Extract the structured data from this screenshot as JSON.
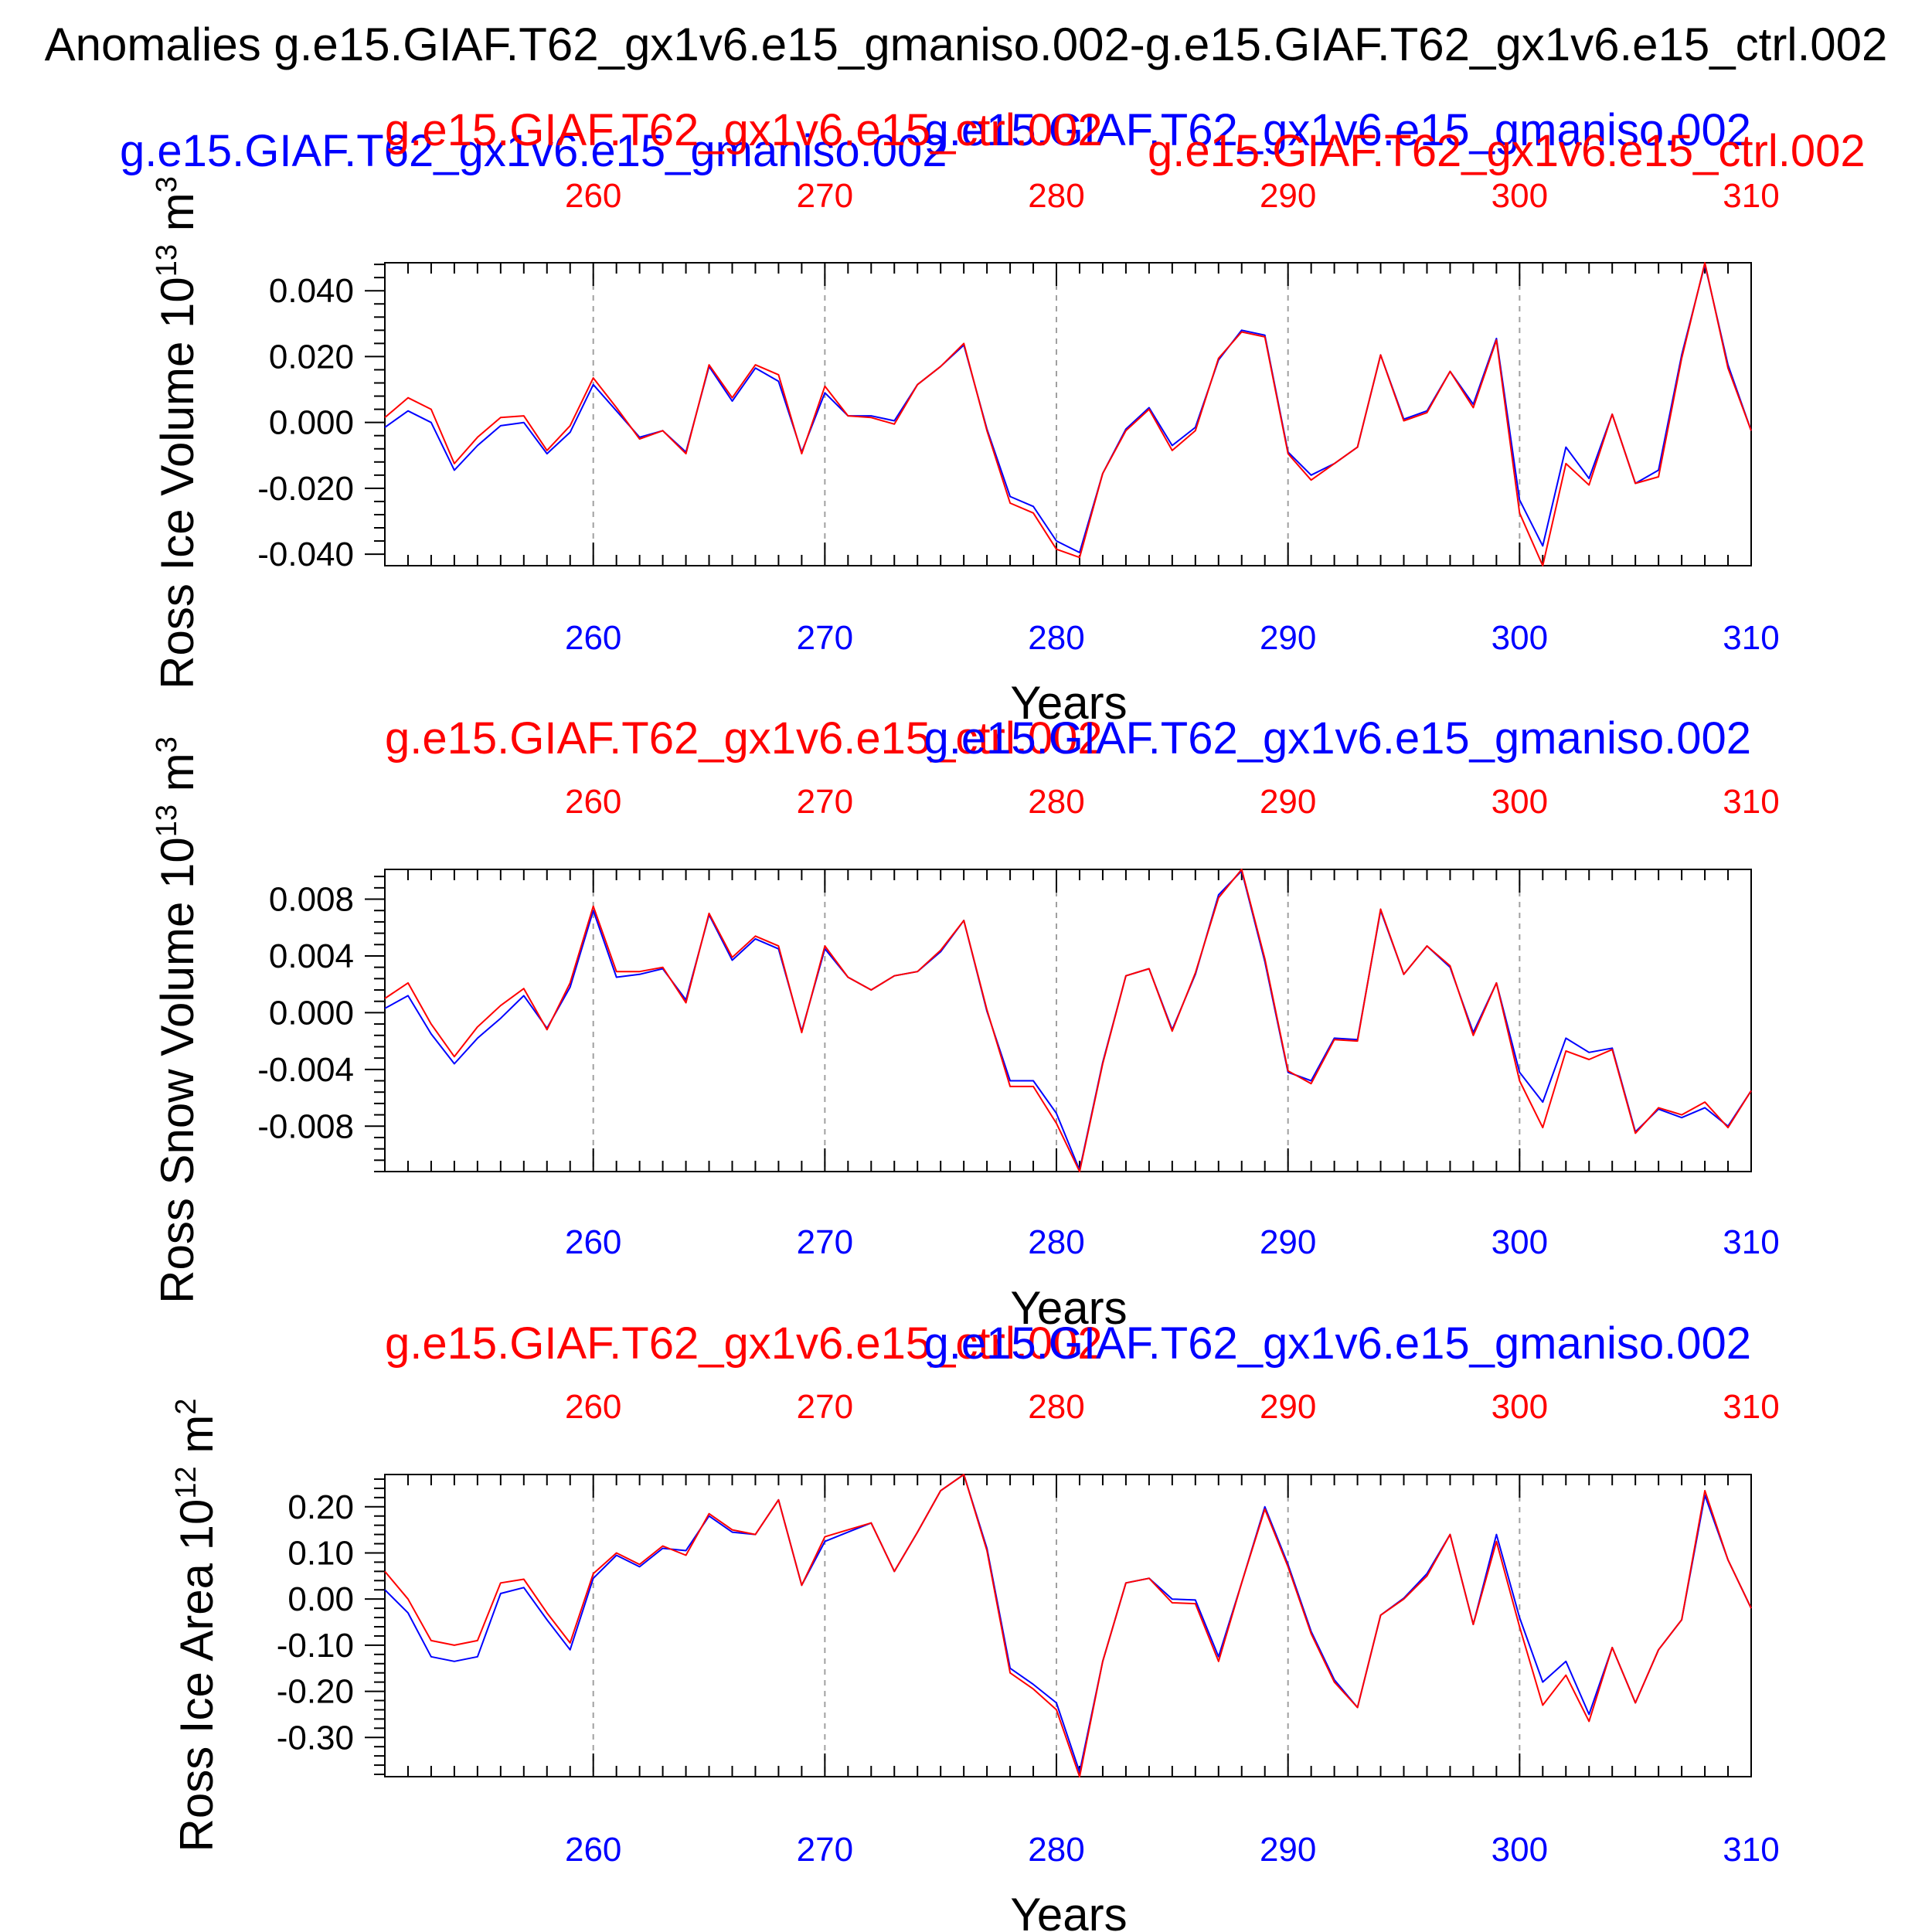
{
  "title": "Anomalies g.e15.GIAF.T62_gx1v6.e15_gmaniso.002-g.e15.GIAF.T62_gx1v6.e15_ctrl.002",
  "colors": {
    "ctrl": "#ff0000",
    "gmaniso": "#0000ff",
    "text": "#000000",
    "grid": "#a0a0a0"
  },
  "run_labels": {
    "ctrl": "g.e15.GIAF.T62_gx1v6.e15_ctrl.002",
    "gmaniso": "g.e15.GIAF.T62_gx1v6.e15_gmaniso.002"
  },
  "chart_data": [
    {
      "type": "line",
      "id": "ross-ice-volume",
      "ylabel": "Ross Ice Volume 10^13 m^3",
      "ylabel_main": "Ross Ice Volume 10",
      "ylabel_exp": "13",
      "ylabel_unit": " m",
      "ylabel_unit_exp": "3",
      "xlabel": "Years",
      "xlim": [
        251,
        310
      ],
      "ylim": [
        -0.0435,
        0.0485
      ],
      "yticks": [
        -0.04,
        -0.02,
        0.0,
        0.02,
        0.04
      ],
      "ytick_labels": [
        "-0.040",
        "-0.020",
        "0.000",
        "0.020",
        "0.040"
      ],
      "xticks": [
        260,
        270,
        280,
        290,
        300,
        310
      ],
      "xtick_labels": [
        "260",
        "270",
        "280",
        "290",
        "300",
        "310"
      ],
      "grid_x": [
        260,
        270,
        280,
        290,
        300
      ],
      "x_start": 251,
      "series": [
        {
          "name": "g.e15.GIAF.T62_gx1v6.e15_gmaniso.002",
          "color": "#0000ff",
          "values": [
            -0.0015,
            0.0035,
            0.0,
            -0.0145,
            -0.007,
            -0.001,
            0.0,
            -0.0095,
            -0.003,
            0.0115,
            0.0035,
            -0.0045,
            -0.0025,
            -0.009,
            0.017,
            0.0065,
            0.0165,
            0.0125,
            -0.009,
            0.009,
            0.002,
            0.002,
            0.0005,
            0.0115,
            0.017,
            0.0235,
            -0.002,
            -0.0225,
            -0.0255,
            -0.036,
            -0.0395,
            -0.0155,
            -0.002,
            0.0045,
            -0.007,
            -0.0015,
            0.019,
            0.028,
            0.0265,
            -0.009,
            -0.016,
            -0.0125,
            -0.0075,
            0.0205,
            0.001,
            0.0035,
            0.0155,
            0.0055,
            0.0255,
            -0.0235,
            -0.0375,
            -0.0075,
            -0.017,
            0.0025,
            -0.0185,
            -0.0145,
            0.0205,
            0.048,
            0.0175,
            -0.0025
          ]
        },
        {
          "name": "g.e15.GIAF.T62_gx1v6.e15_ctrl.002",
          "color": "#ff0000",
          "values": [
            0.0015,
            0.0075,
            0.004,
            -0.0125,
            -0.0045,
            0.0015,
            0.002,
            -0.0085,
            -0.001,
            0.0135,
            0.0045,
            -0.005,
            -0.0025,
            -0.0095,
            0.0175,
            0.0075,
            0.0175,
            0.0145,
            -0.0095,
            0.011,
            0.002,
            0.0015,
            -0.0005,
            0.0115,
            0.017,
            0.024,
            -0.0025,
            -0.0245,
            -0.0275,
            -0.0385,
            -0.041,
            -0.0155,
            -0.0025,
            0.004,
            -0.0085,
            -0.0025,
            0.0195,
            0.0275,
            0.026,
            -0.0095,
            -0.0175,
            -0.0125,
            -0.0075,
            0.0205,
            0.0005,
            0.003,
            0.0155,
            0.0045,
            0.025,
            -0.0275,
            -0.0435,
            -0.0125,
            -0.019,
            0.0025,
            -0.0185,
            -0.0165,
            0.0195,
            0.0485,
            0.0165,
            -0.0025
          ]
        }
      ]
    },
    {
      "type": "line",
      "id": "ross-snow-volume",
      "ylabel": "Ross Snow Volume 10^13 m^3",
      "ylabel_main": "Ross Snow Volume 10",
      "ylabel_exp": "13",
      "ylabel_unit": " m",
      "ylabel_unit_exp": "3",
      "xlabel": "Years",
      "xlim": [
        251,
        310
      ],
      "ylim": [
        -0.0112,
        0.0101
      ],
      "yticks": [
        -0.008,
        -0.004,
        0.0,
        0.004,
        0.008
      ],
      "ytick_labels": [
        "-0.008",
        "-0.004",
        "0.000",
        "0.004",
        "0.008"
      ],
      "xticks": [
        260,
        270,
        280,
        290,
        300,
        310
      ],
      "xtick_labels": [
        "260",
        "270",
        "280",
        "290",
        "300",
        "310"
      ],
      "grid_x": [
        260,
        270,
        280,
        290,
        300
      ],
      "x_start": 251,
      "series": [
        {
          "name": "g.e15.GIAF.T62_gx1v6.e15_gmaniso.002",
          "color": "#0000ff",
          "values": [
            0.0003,
            0.0012,
            -0.0015,
            -0.0036,
            -0.0018,
            -0.0004,
            0.0012,
            -0.0011,
            0.0018,
            0.0072,
            0.0025,
            0.0027,
            0.0031,
            0.0009,
            0.0069,
            0.0037,
            0.0052,
            0.0045,
            -0.0013,
            0.0045,
            0.0025,
            0.0016,
            0.0026,
            0.0029,
            0.0043,
            0.0065,
            0.0001,
            -0.0048,
            -0.0048,
            -0.0071,
            -0.0111,
            -0.0035,
            0.0026,
            0.0031,
            -0.0012,
            0.0027,
            0.0083,
            0.01,
            0.0036,
            -0.0042,
            -0.0048,
            -0.0018,
            -0.0019,
            0.0072,
            0.0027,
            0.0047,
            0.0032,
            -0.0014,
            0.0021,
            -0.0042,
            -0.0063,
            -0.0018,
            -0.0028,
            -0.0025,
            -0.0084,
            -0.0068,
            -0.0074,
            -0.0067,
            -0.008,
            -0.0055
          ]
        },
        {
          "name": "g.e15.GIAF.T62_gx1v6.e15_ctrl.002",
          "color": "#ff0000",
          "values": [
            0.001,
            0.0021,
            -0.0008,
            -0.0031,
            -0.001,
            0.0005,
            0.0017,
            -0.0012,
            0.0021,
            0.0075,
            0.0029,
            0.0029,
            0.0032,
            0.0007,
            0.007,
            0.0039,
            0.0054,
            0.0047,
            -0.0014,
            0.0047,
            0.0025,
            0.0016,
            0.0026,
            0.0029,
            0.0044,
            0.0065,
            0.0002,
            -0.0052,
            -0.0052,
            -0.0078,
            -0.0112,
            -0.0036,
            0.0026,
            0.0031,
            -0.0013,
            0.0028,
            0.0081,
            0.0101,
            0.0038,
            -0.0041,
            -0.005,
            -0.0019,
            -0.002,
            0.0073,
            0.0027,
            0.0047,
            0.0033,
            -0.0016,
            0.0021,
            -0.0048,
            -0.0081,
            -0.0027,
            -0.0033,
            -0.0026,
            -0.0085,
            -0.0067,
            -0.0072,
            -0.0063,
            -0.0081,
            -0.0055
          ]
        }
      ]
    },
    {
      "type": "line",
      "id": "ross-ice-area",
      "ylabel": "Ross Ice Area 10^12 m^2",
      "ylabel_main": "Ross Ice Area 10",
      "ylabel_exp": "12",
      "ylabel_unit": " m",
      "ylabel_unit_exp": "2",
      "xlabel": "Years",
      "xlim": [
        251,
        310
      ],
      "ylim": [
        -0.385,
        0.27
      ],
      "yticks": [
        -0.3,
        -0.2,
        -0.1,
        0.0,
        0.1,
        0.2
      ],
      "ytick_labels": [
        "-0.30",
        "-0.20",
        "-0.10",
        "0.00",
        "0.10",
        "0.20"
      ],
      "xticks": [
        260,
        270,
        280,
        290,
        300,
        310
      ],
      "xtick_labels": [
        "260",
        "270",
        "280",
        "290",
        "300",
        "310"
      ],
      "grid_x": [
        260,
        270,
        280,
        290,
        300
      ],
      "x_start": 251,
      "series": [
        {
          "name": "g.e15.GIAF.T62_gx1v6.e15_gmaniso.002",
          "color": "#0000ff",
          "values": [
            0.02,
            -0.03,
            -0.125,
            -0.135,
            -0.125,
            0.012,
            0.025,
            -0.045,
            -0.11,
            0.045,
            0.095,
            0.07,
            0.11,
            0.105,
            0.18,
            0.145,
            0.14,
            0.215,
            0.03,
            0.125,
            0.145,
            0.165,
            0.06,
            0.145,
            0.235,
            0.27,
            0.11,
            -0.15,
            -0.185,
            -0.225,
            -0.375,
            -0.135,
            0.035,
            0.045,
            0.0,
            -0.002,
            -0.125,
            0.035,
            0.2,
            0.075,
            -0.07,
            -0.175,
            -0.235,
            -0.035,
            0.002,
            0.055,
            0.14,
            -0.055,
            0.14,
            -0.04,
            -0.18,
            -0.135,
            -0.25,
            -0.105,
            -0.225,
            -0.11,
            -0.045,
            0.225,
            0.085,
            -0.02
          ]
        },
        {
          "name": "g.e15.GIAF.T62_gx1v6.e15_ctrl.002",
          "color": "#ff0000",
          "values": [
            0.06,
            0.0,
            -0.09,
            -0.1,
            -0.09,
            0.035,
            0.043,
            -0.03,
            -0.095,
            0.055,
            0.1,
            0.075,
            0.115,
            0.095,
            0.185,
            0.15,
            0.14,
            0.215,
            0.03,
            0.135,
            0.15,
            0.165,
            0.06,
            0.145,
            0.235,
            0.27,
            0.105,
            -0.16,
            -0.195,
            -0.24,
            -0.385,
            -0.135,
            0.035,
            0.045,
            -0.008,
            -0.01,
            -0.135,
            0.035,
            0.195,
            0.07,
            -0.075,
            -0.18,
            -0.235,
            -0.035,
            0.0,
            0.05,
            0.14,
            -0.055,
            0.125,
            -0.06,
            -0.23,
            -0.165,
            -0.265,
            -0.105,
            -0.225,
            -0.11,
            -0.045,
            0.235,
            0.085,
            -0.02
          ]
        }
      ]
    }
  ]
}
